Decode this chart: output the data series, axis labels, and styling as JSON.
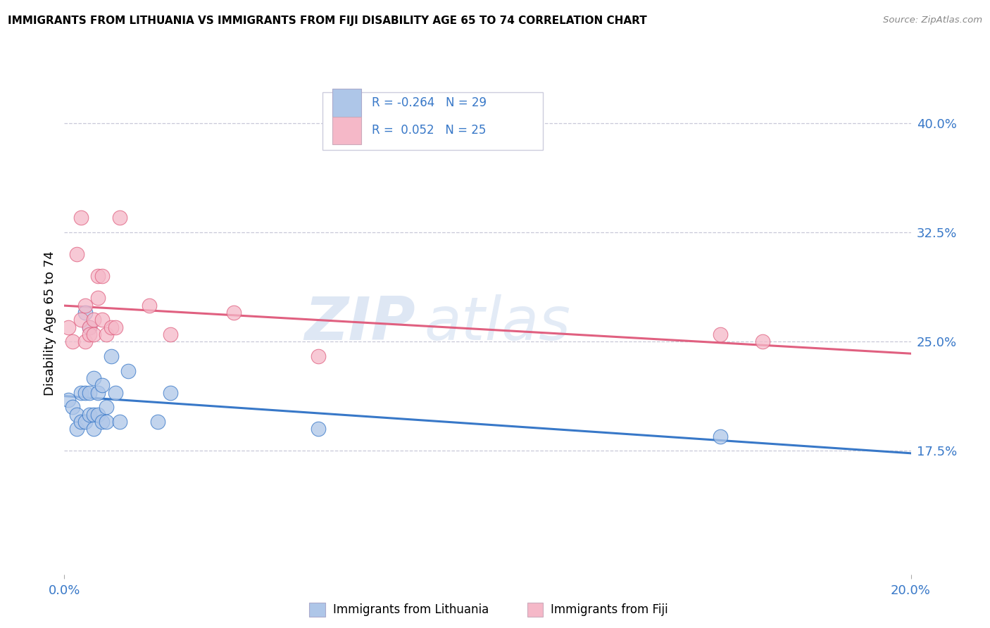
{
  "title": "IMMIGRANTS FROM LITHUANIA VS IMMIGRANTS FROM FIJI DISABILITY AGE 65 TO 74 CORRELATION CHART",
  "source": "Source: ZipAtlas.com",
  "ylabel": "Disability Age 65 to 74",
  "xlim": [
    0.0,
    0.2
  ],
  "ylim": [
    0.09,
    0.435
  ],
  "yticks": [
    0.175,
    0.25,
    0.325,
    0.4
  ],
  "ytick_labels": [
    "17.5%",
    "25.0%",
    "32.5%",
    "40.0%"
  ],
  "legend_r1": "R = -0.264",
  "legend_n1": "N = 29",
  "legend_r2": "R =  0.052",
  "legend_n2": "N = 25",
  "color_lithuania": "#aec6e8",
  "color_fiji": "#f5b8c8",
  "line_color_lithuania": "#3878c8",
  "line_color_fiji": "#e06080",
  "label_lithuania": "Immigrants from Lithuania",
  "label_fiji": "Immigrants from Fiji",
  "watermark_zip": "ZIP",
  "watermark_atlas": "atlas",
  "lithuania_x": [
    0.001,
    0.002,
    0.003,
    0.003,
    0.004,
    0.004,
    0.005,
    0.005,
    0.005,
    0.006,
    0.006,
    0.006,
    0.007,
    0.007,
    0.007,
    0.008,
    0.008,
    0.009,
    0.009,
    0.01,
    0.01,
    0.011,
    0.012,
    0.013,
    0.015,
    0.022,
    0.025,
    0.06,
    0.155
  ],
  "lithuania_y": [
    0.21,
    0.205,
    0.2,
    0.19,
    0.215,
    0.195,
    0.27,
    0.215,
    0.195,
    0.26,
    0.215,
    0.2,
    0.225,
    0.2,
    0.19,
    0.215,
    0.2,
    0.195,
    0.22,
    0.205,
    0.195,
    0.24,
    0.215,
    0.195,
    0.23,
    0.195,
    0.215,
    0.19,
    0.185
  ],
  "fiji_x": [
    0.001,
    0.002,
    0.003,
    0.004,
    0.004,
    0.005,
    0.005,
    0.006,
    0.006,
    0.007,
    0.007,
    0.008,
    0.008,
    0.009,
    0.009,
    0.01,
    0.011,
    0.012,
    0.013,
    0.02,
    0.025,
    0.04,
    0.06,
    0.155,
    0.165
  ],
  "fiji_y": [
    0.26,
    0.25,
    0.31,
    0.265,
    0.335,
    0.25,
    0.275,
    0.26,
    0.255,
    0.265,
    0.255,
    0.295,
    0.28,
    0.295,
    0.265,
    0.255,
    0.26,
    0.26,
    0.335,
    0.275,
    0.255,
    0.27,
    0.24,
    0.255,
    0.25
  ]
}
